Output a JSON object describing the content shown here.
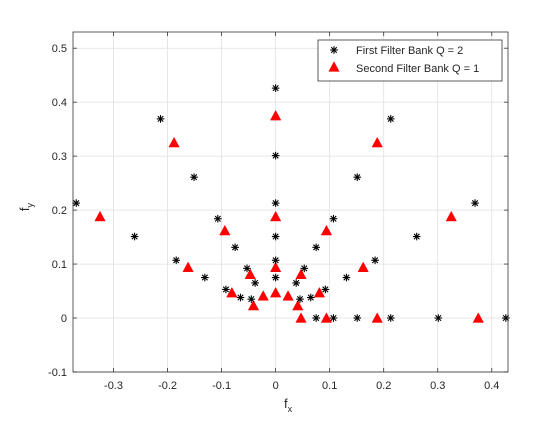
{
  "chart_data": {
    "type": "scatter",
    "xlabel": "f",
    "xlabel_sub": "x",
    "ylabel": "f",
    "ylabel_sub": "y",
    "xlim": [
      -0.375,
      0.43
    ],
    "ylim": [
      -0.1,
      0.53
    ],
    "xticks": [
      -0.3,
      -0.2,
      -0.1,
      0,
      0.1,
      0.2,
      0.3,
      0.4
    ],
    "xtick_labels": [
      "-0.3",
      "-0.2",
      "-0.1",
      "0",
      "0.1",
      "0.2",
      "0.3",
      "0.4"
    ],
    "yticks": [
      -0.1,
      0,
      0.1,
      0.2,
      0.3,
      0.4,
      0.5
    ],
    "ytick_labels": [
      "-0.1",
      "0",
      "0.1",
      "0.2",
      "0.3",
      "0.4",
      "0.5"
    ],
    "grid": true,
    "legend_position": "top-right",
    "series": [
      {
        "name": "First Filter Bank Q = 2",
        "marker": "asterisk",
        "color": "#000000",
        "points": [
          [
            0,
            0.426
          ],
          [
            0,
            0.301
          ],
          [
            0,
            0.213
          ],
          [
            0,
            0.151
          ],
          [
            0,
            0.107
          ],
          [
            0,
            0.075
          ],
          [
            -0.213,
            0.369
          ],
          [
            -0.151,
            0.261
          ],
          [
            -0.107,
            0.184
          ],
          [
            -0.075,
            0.131
          ],
          [
            -0.053,
            0.092
          ],
          [
            -0.038,
            0.065
          ],
          [
            0.213,
            0.369
          ],
          [
            0.151,
            0.261
          ],
          [
            0.107,
            0.184
          ],
          [
            0.075,
            0.131
          ],
          [
            0.053,
            0.092
          ],
          [
            0.038,
            0.065
          ],
          [
            -0.369,
            0.213
          ],
          [
            -0.261,
            0.151
          ],
          [
            -0.184,
            0.107
          ],
          [
            -0.131,
            0.075
          ],
          [
            -0.092,
            0.053
          ],
          [
            -0.065,
            0.038
          ],
          [
            0.369,
            0.213
          ],
          [
            0.261,
            0.151
          ],
          [
            0.184,
            0.107
          ],
          [
            0.131,
            0.075
          ],
          [
            0.092,
            0.053
          ],
          [
            0.065,
            0.038
          ],
          [
            0.426,
            0
          ],
          [
            0.301,
            0
          ],
          [
            0.213,
            0
          ],
          [
            0.151,
            0
          ],
          [
            0.107,
            0
          ],
          [
            0.075,
            0
          ],
          [
            -0.045,
            0.035
          ],
          [
            0.045,
            0.035
          ]
        ]
      },
      {
        "name": "Second Filter Bank Q = 1",
        "marker": "triangle",
        "color": "#ff0000",
        "points": [
          [
            0,
            0.375
          ],
          [
            0,
            0.188
          ],
          [
            0,
            0.094
          ],
          [
            0,
            0.047
          ],
          [
            -0.188,
            0.325
          ],
          [
            -0.094,
            0.162
          ],
          [
            -0.047,
            0.081
          ],
          [
            -0.023,
            0.041
          ],
          [
            0.188,
            0.325
          ],
          [
            0.094,
            0.162
          ],
          [
            0.047,
            0.081
          ],
          [
            0.023,
            0.041
          ],
          [
            -0.325,
            0.188
          ],
          [
            -0.162,
            0.094
          ],
          [
            -0.081,
            0.047
          ],
          [
            -0.041,
            0.023
          ],
          [
            0.325,
            0.188
          ],
          [
            0.162,
            0.094
          ],
          [
            0.081,
            0.047
          ],
          [
            0.041,
            0.023
          ],
          [
            0.375,
            0
          ],
          [
            0.188,
            0
          ],
          [
            0.094,
            0
          ],
          [
            0.047,
            0
          ]
        ]
      }
    ]
  }
}
